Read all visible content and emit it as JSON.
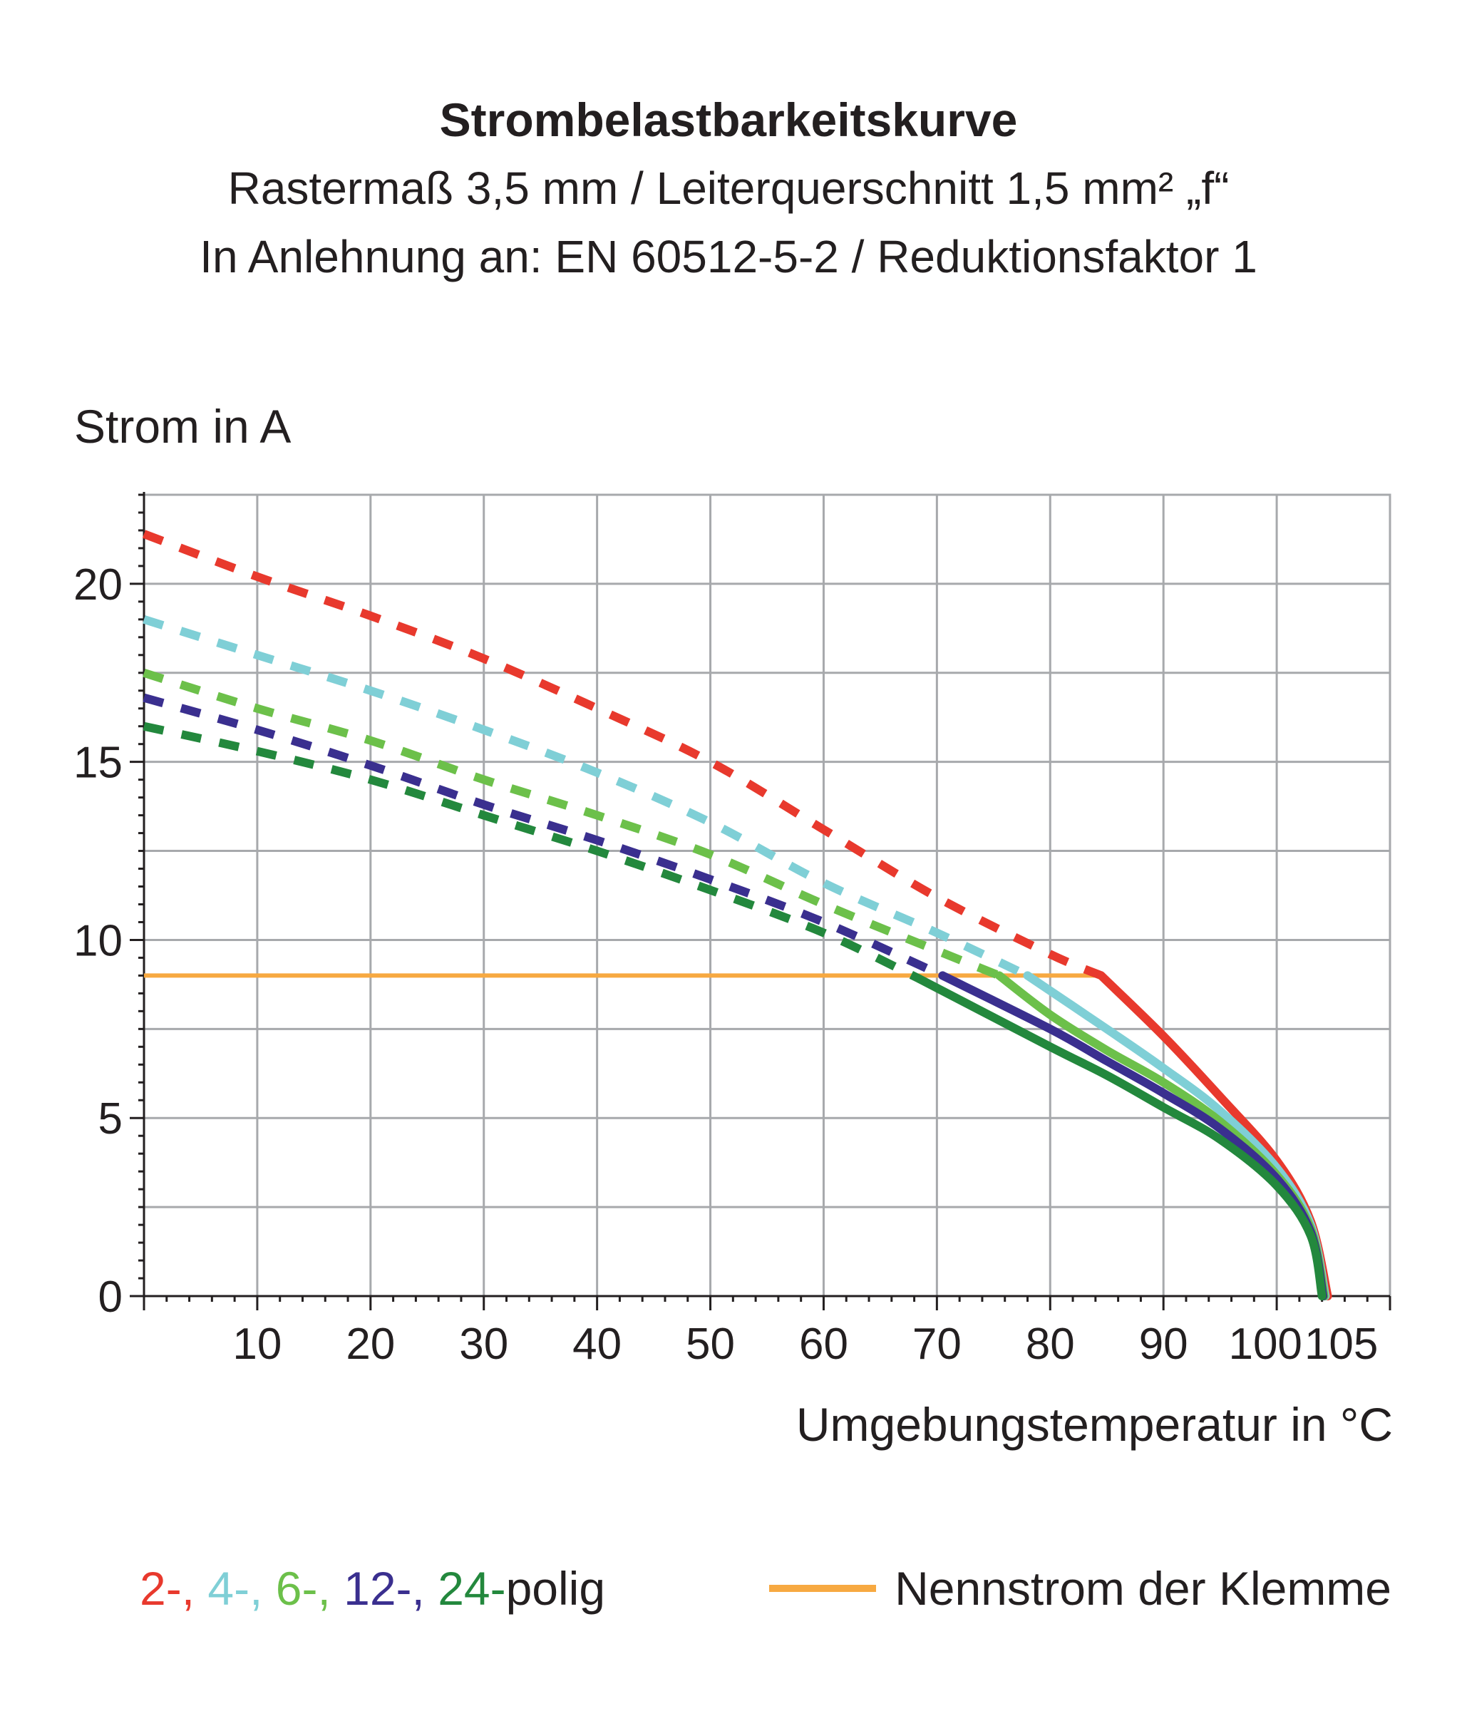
{
  "colors": {
    "pol2": "#e8392d",
    "pol4": "#7fcfd6",
    "pol6": "#6cc04a",
    "pol12": "#3a2f8f",
    "pol24": "#23883d",
    "nennstrom": "#f7a941",
    "grid": "#a7a9ac",
    "text": "#231f20"
  },
  "chart_data": {
    "type": "line",
    "title": "Strombelastbarkeitskurve",
    "subtitle_1": "Rastermaß 3,5 mm / Leiterquerschnitt 1,5 mm² „f“",
    "subtitle_2": "In Anlehnung an: EN 60512-5-2 / Reduktionsfaktor 1",
    "ylabel": "Strom in A",
    "xlabel": "Umgebungstemperatur in °C",
    "xlim": [
      0,
      110
    ],
    "ylim": [
      0,
      22.5
    ],
    "x_ticks": [
      10,
      20,
      30,
      40,
      50,
      60,
      70,
      80,
      90,
      100,
      105
    ],
    "y_ticks": [
      0,
      5,
      10,
      15,
      20
    ],
    "grid": true,
    "series": [
      {
        "name": "2-polig",
        "color_key": "pol2",
        "dashed": {
          "x": [
            0,
            10,
            20,
            30,
            40,
            50,
            60,
            70,
            80,
            84.5
          ],
          "y": [
            21.4,
            20.2,
            19.1,
            17.9,
            16.5,
            15.0,
            13.1,
            11.2,
            9.6,
            9.0
          ]
        },
        "solid": {
          "x": [
            84.5,
            90,
            95,
            100,
            103,
            104.5
          ],
          "y": [
            9.0,
            7.3,
            5.6,
            3.8,
            2.1,
            0.0
          ]
        }
      },
      {
        "name": "4-polig",
        "color_key": "pol4",
        "dashed": {
          "x": [
            0,
            10,
            20,
            30,
            40,
            50,
            60,
            70,
            78
          ],
          "y": [
            19.0,
            18.0,
            17.0,
            15.9,
            14.7,
            13.3,
            11.6,
            10.2,
            9.0
          ]
        },
        "solid": {
          "x": [
            78,
            85,
            90,
            95,
            100,
            103,
            104.3
          ],
          "y": [
            9.0,
            7.5,
            6.4,
            5.2,
            3.6,
            2.0,
            0.0
          ]
        }
      },
      {
        "name": "6-polig",
        "color_key": "pol6",
        "dashed": {
          "x": [
            0,
            10,
            20,
            30,
            40,
            50,
            60,
            70,
            75.5
          ],
          "y": [
            17.5,
            16.5,
            15.6,
            14.5,
            13.5,
            12.4,
            11.0,
            9.7,
            9.0
          ]
        },
        "solid": {
          "x": [
            75.5,
            80,
            85,
            90,
            95,
            100,
            103,
            104.2
          ],
          "y": [
            9.0,
            7.9,
            6.9,
            6.0,
            4.9,
            3.4,
            1.9,
            0.0
          ]
        }
      },
      {
        "name": "12-polig",
        "color_key": "pol12",
        "dashed": {
          "x": [
            0,
            10,
            20,
            30,
            40,
            50,
            60,
            70.5
          ],
          "y": [
            16.8,
            15.9,
            14.9,
            13.8,
            12.8,
            11.7,
            10.5,
            9.0
          ]
        },
        "solid": {
          "x": [
            70.5,
            80,
            85,
            90,
            95,
            100,
            103,
            104.1
          ],
          "y": [
            9.0,
            7.5,
            6.6,
            5.7,
            4.7,
            3.3,
            1.8,
            0.0
          ]
        }
      },
      {
        "name": "24-polig",
        "color_key": "pol24",
        "dashed": {
          "x": [
            0,
            10,
            20,
            30,
            40,
            50,
            60,
            68.5
          ],
          "y": [
            16.0,
            15.3,
            14.5,
            13.5,
            12.5,
            11.4,
            10.2,
            8.9
          ]
        },
        "solid": {
          "x": [
            68.5,
            80,
            85,
            90,
            95,
            100,
            103,
            104
          ],
          "y": [
            8.9,
            7.0,
            6.2,
            5.3,
            4.4,
            3.1,
            1.7,
            0.0
          ]
        }
      }
    ],
    "reference_line": {
      "name": "Nennstrom der Klemme",
      "color_key": "nennstrom",
      "x": [
        0,
        84.5
      ],
      "y": [
        9.0,
        9.0
      ]
    }
  },
  "legend": {
    "pol2": "2-",
    "sep1": ", ",
    "pol4": "4-",
    "sep2": ", ",
    "pol6": "6-",
    "sep3": ", ",
    "pol12": "12-",
    "sep4": ", ",
    "pol24": "24-",
    "suffix": "polig",
    "nennstrom_label": "Nennstrom der Klemme"
  }
}
